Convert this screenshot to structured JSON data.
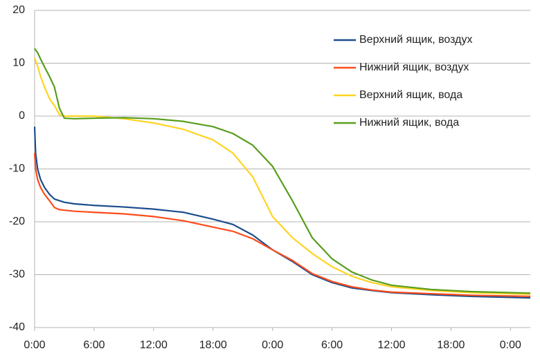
{
  "chart_data": {
    "type": "line",
    "x": [
      0,
      0.1,
      0.3,
      0.6,
      1,
      1.5,
      2,
      2.5,
      3,
      4,
      6,
      9,
      12,
      15,
      18,
      20,
      22,
      24,
      26,
      28,
      30,
      32,
      34,
      36,
      40,
      44,
      50
    ],
    "series": [
      {
        "name": "Верхний ящик, воздух",
        "color": "#1a4c8c",
        "values": [
          -2,
          -7,
          -10,
          -12,
          -13.5,
          -14.8,
          -15.7,
          -16,
          -16.3,
          -16.6,
          -16.9,
          -17.2,
          -17.6,
          -18.2,
          -19.5,
          -20.5,
          -22.5,
          -25.3,
          -27.5,
          -30,
          -31.5,
          -32.5,
          -33,
          -33.4,
          -33.8,
          -34.1,
          -34.4
        ]
      },
      {
        "name": "Нижний ящик, воздух",
        "color": "#ff4b1a",
        "values": [
          -7,
          -10,
          -12,
          -13.5,
          -14.8,
          -16,
          -17.3,
          -17.7,
          -17.8,
          -18,
          -18.2,
          -18.5,
          -19,
          -19.8,
          -21,
          -21.8,
          -23.2,
          -25.3,
          -27.3,
          -29.8,
          -31.3,
          -32.3,
          -32.9,
          -33.3,
          -33.6,
          -33.9,
          -34.1
        ]
      },
      {
        "name": "Верхний ящик, вода",
        "color": "#ffd320",
        "values": [
          11,
          10.5,
          9.5,
          7.5,
          5.5,
          3.3,
          2,
          0.3,
          0,
          0,
          0,
          -0.5,
          -1.3,
          -2.5,
          -4.5,
          -7,
          -11.5,
          -19,
          -23,
          -26,
          -28.5,
          -30.3,
          -31.5,
          -32.3,
          -33,
          -33.4,
          -33.7
        ]
      },
      {
        "name": "Нижний ящик, вода",
        "color": "#579d1c",
        "values": [
          12.8,
          12.5,
          12,
          10.8,
          9.3,
          7.5,
          5.5,
          1.5,
          -0.4,
          -0.5,
          -0.4,
          -0.3,
          -0.5,
          -1,
          -2,
          -3.3,
          -5.5,
          -9.5,
          -16,
          -23,
          -27,
          -29.5,
          -31,
          -32,
          -32.8,
          -33.2,
          -33.5
        ]
      }
    ],
    "xlim": [
      0,
      50
    ],
    "xticks": [
      {
        "value": 0,
        "label": "0:00"
      },
      {
        "value": 6,
        "label": "6:00"
      },
      {
        "value": 12,
        "label": "12:00"
      },
      {
        "value": 18,
        "label": "18:00"
      },
      {
        "value": 24,
        "label": "0:00"
      },
      {
        "value": 30,
        "label": "6:00"
      },
      {
        "value": 36,
        "label": "12:00"
      },
      {
        "value": 42,
        "label": "18:00"
      },
      {
        "value": 48,
        "label": "0:00"
      }
    ],
    "ylim": [
      -40,
      20
    ],
    "yticks": [
      -40,
      -30,
      -20,
      -10,
      0,
      10,
      20
    ],
    "grid": true,
    "legend": "upper right"
  }
}
